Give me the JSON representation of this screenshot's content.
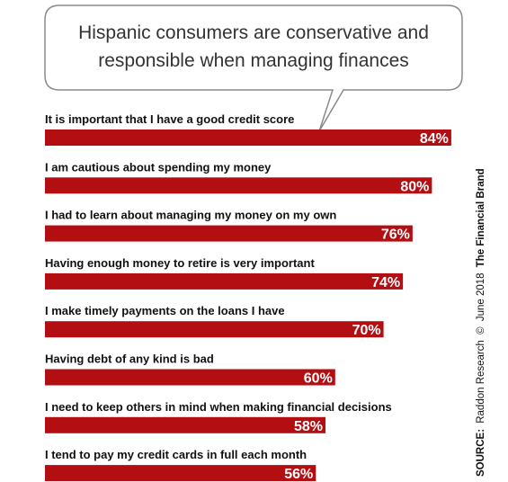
{
  "chart_data": {
    "type": "bar",
    "orientation": "horizontal",
    "title_lines": [
      "Hispanic consumers are conservative and",
      "responsible when managing finances"
    ],
    "categories": [
      "It is important that I have a good credit score",
      "I am cautious about spending my money",
      "I had to learn about managing my money on my own",
      "Having enough money to retire is very important",
      "I make timely payments on the loans I have",
      "Having debt of any kind is bad",
      "I need to keep others in mind when making financial decisions",
      "I tend to pay my credit cards in full each month"
    ],
    "values": [
      84,
      80,
      76,
      74,
      70,
      60,
      58,
      56
    ],
    "value_labels": [
      "84%",
      "80%",
      "76%",
      "74%",
      "70%",
      "60%",
      "58%",
      "56%"
    ],
    "xlim": [
      0,
      100
    ],
    "grid": false,
    "legend": "none"
  },
  "source": {
    "prefix": "SOURCE:",
    "text": "Raddon Research",
    "copyright_symbol": "©",
    "date": "June 2018",
    "brand": "The Financial Brand"
  },
  "colors": {
    "bar": "#b30f12",
    "bubble_border": "#8a8a8a",
    "bubble_fill": "#ffffff"
  }
}
